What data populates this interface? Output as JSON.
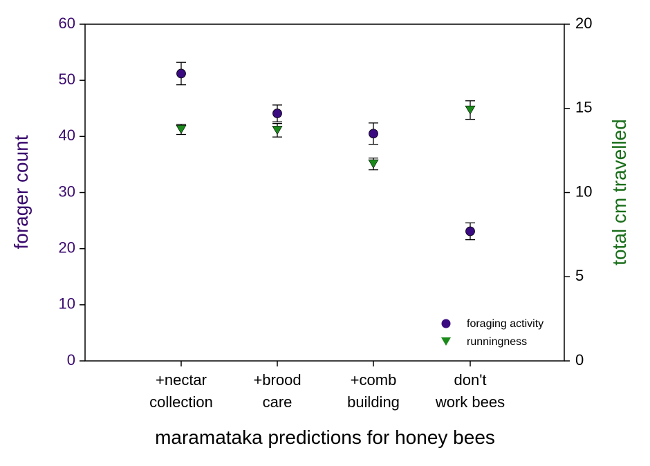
{
  "chart_data": {
    "type": "scatter",
    "xlabel": "maramataka predictions for honey bees",
    "categories": [
      [
        "+nectar",
        "collection"
      ],
      [
        "+brood",
        "care"
      ],
      [
        "+comb",
        "building"
      ],
      [
        "don't",
        "work bees"
      ]
    ],
    "y_left": {
      "label": "forager count",
      "lim": [
        0,
        60
      ],
      "ticks": [
        0,
        10,
        20,
        30,
        40,
        50,
        60
      ],
      "color": "#3a0a6e"
    },
    "y_right": {
      "label": "total cm travelled",
      "lim": [
        0,
        20
      ],
      "ticks": [
        0,
        5,
        10,
        15,
        20
      ],
      "color": "#1a6e1a"
    },
    "series": [
      {
        "name": "foraging activity",
        "axis": "left",
        "marker": "circle",
        "color": "#3a0a80",
        "values": [
          51.2,
          44.1,
          40.5,
          23.1
        ],
        "err": [
          2.0,
          1.5,
          1.9,
          1.5
        ]
      },
      {
        "name": "runningness",
        "axis": "right",
        "marker": "triangle-down",
        "color": "#1a8a1a",
        "values": [
          13.75,
          13.7,
          11.7,
          14.9
        ],
        "err": [
          0.3,
          0.4,
          0.35,
          0.55
        ]
      }
    ],
    "legend_position": "bottom-right",
    "grid": false
  }
}
